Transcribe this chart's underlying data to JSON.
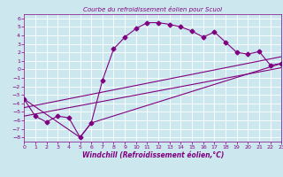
{
  "title": "Courbe du refroidissement éolien pour Scuol",
  "xlabel": "Windchill (Refroidissement éolien,°C)",
  "bg_color": "#cce8ee",
  "line_color": "#800080",
  "grid_color": "#ffffff",
  "xlim": [
    0,
    23
  ],
  "ylim": [
    -8.5,
    6.5
  ],
  "xticks": [
    0,
    1,
    2,
    3,
    4,
    5,
    6,
    7,
    8,
    9,
    10,
    11,
    12,
    13,
    14,
    15,
    16,
    17,
    18,
    19,
    20,
    21,
    22,
    23
  ],
  "yticks": [
    -8,
    -7,
    -6,
    -5,
    -4,
    -3,
    -2,
    -1,
    0,
    1,
    2,
    3,
    4,
    5,
    6
  ],
  "series1_x": [
    0,
    1,
    2,
    3,
    4,
    5,
    6,
    7,
    8,
    9,
    10,
    11,
    12,
    13,
    14,
    15,
    16,
    17,
    18,
    19,
    20,
    21,
    22,
    23
  ],
  "series1_y": [
    -3.5,
    -5.5,
    -6.2,
    -5.5,
    -5.7,
    -8.0,
    -6.3,
    -1.3,
    2.4,
    3.8,
    4.8,
    5.5,
    5.5,
    5.3,
    5.0,
    4.5,
    3.8,
    4.4,
    3.2,
    2.0,
    1.8,
    2.1,
    0.5,
    0.7
  ],
  "series2_x": [
    0,
    5,
    6,
    23
  ],
  "series2_y": [
    -3.5,
    -8.0,
    -6.3,
    0.7
  ],
  "series3_x": [
    0,
    23
  ],
  "series3_y": [
    -4.5,
    1.5
  ],
  "series4_x": [
    0,
    23
  ],
  "series4_y": [
    -5.5,
    0.2
  ],
  "title_fontsize": 5.0,
  "xlabel_fontsize": 5.5,
  "tick_fontsize": 4.5,
  "marker_size": 2.5,
  "line_width": 0.8
}
